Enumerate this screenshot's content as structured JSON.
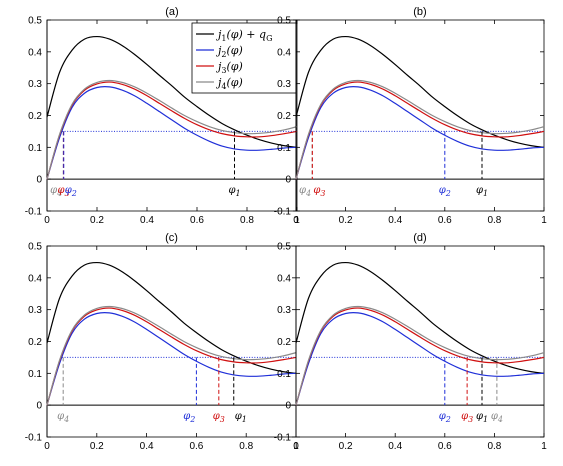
{
  "chart_data": {
    "type": "line",
    "layout": "2x2 grid",
    "xlim": [
      0,
      1
    ],
    "ylim": [
      -0.1,
      0.5
    ],
    "x_ticks": [
      "0",
      "0.2",
      "0.4",
      "0.6",
      "0.8",
      "1"
    ],
    "y_ticks": [
      "-0.1",
      "0",
      "0.1",
      "0.2",
      "0.3",
      "0.4",
      "0.5"
    ],
    "x": [
      0,
      0.05,
      0.1,
      0.15,
      0.2,
      0.25,
      0.3,
      0.35,
      0.4,
      0.45,
      0.5,
      0.55,
      0.6,
      0.65,
      0.7,
      0.75,
      0.8,
      0.85,
      0.9,
      0.95,
      1.0
    ],
    "series": [
      {
        "name": "j1(φ) + qG",
        "label_html": "j<tspan class=\"sub\" dy=\"3\" font-size=\"8\">1</tspan><tspan dy=\"-3\">(φ) + q</tspan><tspan dy=\"3\" font-size=\"8\" font-style=\"normal\">G</tspan>",
        "color": "#000000",
        "values": [
          0.195,
          0.335,
          0.405,
          0.44,
          0.448,
          0.44,
          0.42,
          0.392,
          0.36,
          0.326,
          0.293,
          0.258,
          0.228,
          0.2,
          0.175,
          0.155,
          0.138,
          0.124,
          0.113,
          0.105,
          0.1
        ]
      },
      {
        "name": "j2(φ)",
        "color": "#1f2fd8",
        "values": [
          0.0,
          0.13,
          0.225,
          0.27,
          0.288,
          0.29,
          0.28,
          0.262,
          0.238,
          0.212,
          0.186,
          0.16,
          0.138,
          0.119,
          0.104,
          0.095,
          0.091,
          0.091,
          0.094,
          0.098,
          0.1
        ]
      },
      {
        "name": "j3(φ)",
        "color": "#d01010",
        "values": [
          0.0,
          0.138,
          0.232,
          0.279,
          0.299,
          0.305,
          0.298,
          0.283,
          0.262,
          0.238,
          0.214,
          0.191,
          0.171,
          0.155,
          0.143,
          0.136,
          0.133,
          0.133,
          0.137,
          0.143,
          0.15
        ]
      },
      {
        "name": "j4(φ)",
        "color": "#8a8a8a",
        "values": [
          0.0,
          0.14,
          0.235,
          0.283,
          0.304,
          0.31,
          0.304,
          0.29,
          0.27,
          0.247,
          0.223,
          0.2,
          0.181,
          0.165,
          0.153,
          0.146,
          0.143,
          0.144,
          0.148,
          0.155,
          0.165
        ]
      }
    ],
    "reference_line": {
      "y": 0.15,
      "color": "#1f2fd8",
      "style": "dotted"
    },
    "panels": [
      {
        "title": "(a)",
        "markers": [
          {
            "x": 0.065,
            "color": "#8a8a8a",
            "sub": "4",
            "side": "left"
          },
          {
            "x": 0.066,
            "color": "#d01010",
            "sub": "3",
            "side": "mid"
          },
          {
            "x": 0.067,
            "color": "#1f2fd8",
            "sub": "2",
            "side": "right"
          },
          {
            "x": 0.75,
            "color": "#000000",
            "sub": "1",
            "side": "mid"
          }
        ]
      },
      {
        "title": "(b)",
        "markers": [
          {
            "x": 0.065,
            "color": "#8a8a8a",
            "sub": "4",
            "side": "left"
          },
          {
            "x": 0.066,
            "color": "#d01010",
            "sub": "3",
            "side": "right"
          },
          {
            "x": 0.6,
            "color": "#1f2fd8",
            "sub": "2",
            "side": "mid"
          },
          {
            "x": 0.75,
            "color": "#000000",
            "sub": "1",
            "side": "mid"
          }
        ]
      },
      {
        "title": "(c)",
        "markers": [
          {
            "x": 0.065,
            "color": "#8a8a8a",
            "sub": "4",
            "side": "mid"
          },
          {
            "x": 0.6,
            "color": "#1f2fd8",
            "sub": "2",
            "side": "left"
          },
          {
            "x": 0.69,
            "color": "#d01010",
            "sub": "3",
            "side": "mid"
          },
          {
            "x": 0.75,
            "color": "#000000",
            "sub": "1",
            "side": "right"
          }
        ]
      },
      {
        "title": "(d)",
        "markers": [
          {
            "x": 0.6,
            "color": "#1f2fd8",
            "sub": "2",
            "side": "mid"
          },
          {
            "x": 0.69,
            "color": "#d01010",
            "sub": "3",
            "side": "mid"
          },
          {
            "x": 0.75,
            "color": "#000000",
            "sub": "1",
            "side": "mid"
          },
          {
            "x": 0.81,
            "color": "#8a8a8a",
            "sub": "4",
            "side": "mid"
          }
        ]
      }
    ],
    "legend": {
      "panel": "(a)",
      "placement": "top-right"
    },
    "grid": false
  }
}
